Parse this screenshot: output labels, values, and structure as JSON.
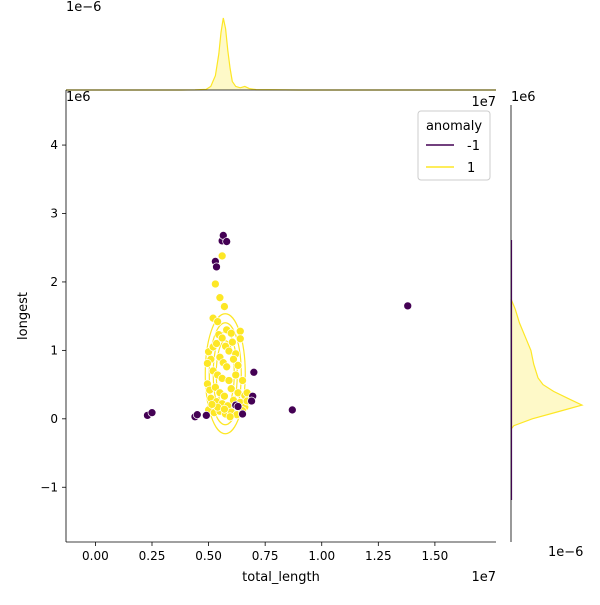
{
  "chart_data": {
    "type": "scatter",
    "xlabel": "total_length",
    "ylabel": "longest",
    "x_offset_label": "1e7",
    "y_offset_label": "1e6",
    "top_marginal_offset_label": "1e−6",
    "right_top_offset_label": "1e6",
    "right_bottom_offset_label": "1e−6",
    "xlim": [
      -1300000,
      17700000
    ],
    "ylim": [
      -1800000,
      4600000
    ],
    "x_ticks": [
      0,
      2500000,
      5000000,
      7500000,
      10000000,
      12500000,
      15000000
    ],
    "x_tick_labels": [
      "0.00",
      "0.25",
      "0.50",
      "0.75",
      "1.00",
      "1.25",
      "1.50"
    ],
    "y_ticks": [
      -1000000,
      0,
      1000000,
      2000000,
      3000000,
      4000000
    ],
    "y_tick_labels": [
      "−1",
      "0",
      "1",
      "2",
      "3",
      "4"
    ],
    "legend": {
      "title": "anomaly",
      "position": "top-right",
      "entries": [
        {
          "label": "-1",
          "color": "#440154"
        },
        {
          "label": "1",
          "color": "#fde725"
        }
      ]
    },
    "series": [
      {
        "name": "-1",
        "color": "#440154",
        "points": [
          [
            2300000,
            50000
          ],
          [
            2500000,
            90000
          ],
          [
            4400000,
            30000
          ],
          [
            4500000,
            60000
          ],
          [
            4900000,
            50000
          ],
          [
            5300000,
            2300000
          ],
          [
            5350000,
            2220000
          ],
          [
            5600000,
            2600000
          ],
          [
            5650000,
            2680000
          ],
          [
            5800000,
            2590000
          ],
          [
            6200000,
            200000
          ],
          [
            6300000,
            180000
          ],
          [
            7000000,
            680000
          ],
          [
            6950000,
            330000
          ],
          [
            6900000,
            260000
          ],
          [
            8700000,
            130000
          ],
          [
            13800000,
            1650000
          ],
          [
            6500000,
            70000
          ]
        ]
      },
      {
        "name": "1",
        "color": "#fde725",
        "points": [
          [
            5300000,
            1970000
          ],
          [
            5600000,
            2380000
          ],
          [
            5500000,
            1770000
          ],
          [
            5700000,
            1640000
          ],
          [
            5200000,
            1470000
          ],
          [
            5400000,
            1420000
          ],
          [
            5800000,
            1300000
          ],
          [
            6000000,
            1250000
          ],
          [
            6400000,
            1280000
          ],
          [
            6400000,
            1170000
          ],
          [
            5000000,
            980000
          ],
          [
            5100000,
            870000
          ],
          [
            4950000,
            810000
          ],
          [
            5200000,
            1050000
          ],
          [
            5350000,
            1100000
          ],
          [
            5450000,
            1230000
          ],
          [
            5600000,
            1180000
          ],
          [
            5750000,
            1060000
          ],
          [
            5900000,
            990000
          ],
          [
            6050000,
            1120000
          ],
          [
            6200000,
            950000
          ],
          [
            5500000,
            900000
          ],
          [
            5650000,
            820000
          ],
          [
            5800000,
            760000
          ],
          [
            6100000,
            870000
          ],
          [
            6300000,
            780000
          ],
          [
            5200000,
            700000
          ],
          [
            5400000,
            640000
          ],
          [
            5600000,
            590000
          ],
          [
            5900000,
            560000
          ],
          [
            6200000,
            640000
          ],
          [
            6500000,
            560000
          ],
          [
            4950000,
            510000
          ],
          [
            5050000,
            420000
          ],
          [
            5300000,
            460000
          ],
          [
            5500000,
            380000
          ],
          [
            5700000,
            330000
          ],
          [
            6000000,
            440000
          ],
          [
            6300000,
            380000
          ],
          [
            6600000,
            340000
          ],
          [
            5100000,
            300000
          ],
          [
            5350000,
            250000
          ],
          [
            5600000,
            220000
          ],
          [
            5850000,
            190000
          ],
          [
            6100000,
            270000
          ],
          [
            6400000,
            240000
          ],
          [
            6600000,
            170000
          ],
          [
            5000000,
            130000
          ],
          [
            5250000,
            90000
          ],
          [
            5500000,
            110000
          ],
          [
            5750000,
            70000
          ],
          [
            6000000,
            100000
          ],
          [
            6250000,
            60000
          ],
          [
            6500000,
            120000
          ],
          [
            5400000,
            170000
          ],
          [
            5700000,
            140000
          ],
          [
            5950000,
            30000
          ],
          [
            5150000,
            210000
          ],
          [
            6700000,
            380000
          ],
          [
            6700000,
            260000
          ]
        ]
      }
    ],
    "top_marginal_density": {
      "series": "1",
      "color": "#fde725",
      "x": [
        -1300000,
        3800000,
        4400000,
        4900000,
        5100000,
        5300000,
        5450000,
        5550000,
        5650000,
        5750000,
        5850000,
        5950000,
        6050000,
        6200000,
        6400000,
        6600000,
        6800000,
        7100000,
        9000000,
        17700000
      ],
      "density": [
        0,
        0,
        0.003,
        0.01,
        0.05,
        0.2,
        0.5,
        0.8,
        1.0,
        0.85,
        0.55,
        0.3,
        0.12,
        0.05,
        0.03,
        0.05,
        0.02,
        0.005,
        0,
        0
      ]
    },
    "right_marginal_density": {
      "series": "1",
      "color": "#fde725",
      "y": [
        -150000,
        -100000,
        0,
        100000,
        200000,
        300000,
        400000,
        500000,
        600000,
        800000,
        1000000,
        1200000,
        1400000,
        1600000,
        1750000
      ],
      "density": [
        0,
        0.04,
        0.3,
        0.65,
        1.0,
        0.8,
        0.6,
        0.45,
        0.38,
        0.32,
        0.28,
        0.2,
        0.12,
        0.06,
        0
      ]
    }
  }
}
